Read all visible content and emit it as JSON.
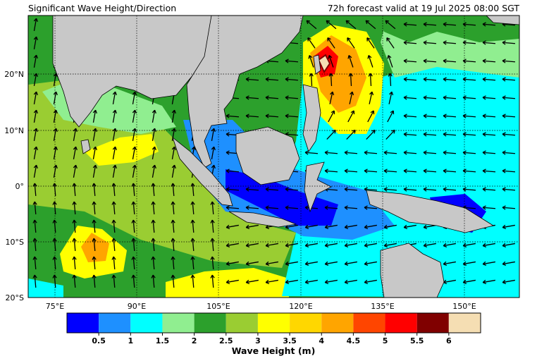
{
  "header": {
    "title": "Significant Wave Height/Direction",
    "subtitle": "72h forecast valid at 19 Jul 2025 08:00 SGT"
  },
  "map": {
    "lat_labels": [
      "20°N",
      "10°N",
      "0°",
      "10°S",
      "20°S"
    ],
    "lon_labels": [
      "75°E",
      "90°E",
      "105°E",
      "120°E",
      "135°E",
      "150°E"
    ]
  },
  "colorbar": {
    "label": "Wave Height (m)",
    "colors": [
      "#0000ff",
      "#1e90ff",
      "#00ffff",
      "#90ee90",
      "#2ca02c",
      "#9acd32",
      "#ffff00",
      "#ffd700",
      "#ffa500",
      "#ff4500",
      "#ff0000",
      "#800000",
      "#f5deb3"
    ],
    "ticks": [
      "0.5",
      "1",
      "1.5",
      "2",
      "2.5",
      "3",
      "3.5",
      "4",
      "4.5",
      "5",
      "5.5",
      "6"
    ]
  }
}
